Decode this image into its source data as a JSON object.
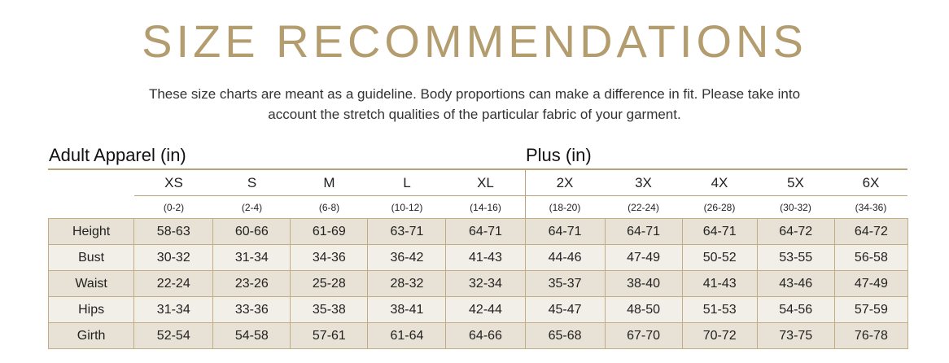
{
  "title": "SIZE RECOMMENDATIONS",
  "subtitle_line1": "These size charts are meant as a guideline. Body proportions can make a difference in fit. Please take into",
  "subtitle_line2": "account the stretch qualities of the particular fabric of your garment.",
  "sections": {
    "adult": "Adult Apparel (in)",
    "plus": "Plus (in)"
  },
  "sizes": [
    "XS",
    "S",
    "M",
    "L",
    "XL",
    "2X",
    "3X",
    "4X",
    "5X",
    "6X"
  ],
  "size_ranges": [
    "(0-2)",
    "(2-4)",
    "(6-8)",
    "(10-12)",
    "(14-16)",
    "(18-20)",
    "(22-24)",
    "(26-28)",
    "(30-32)",
    "(34-36)"
  ],
  "rows": [
    {
      "label": "Height",
      "values": [
        "58-63",
        "60-66",
        "61-69",
        "63-71",
        "64-71",
        "64-71",
        "64-71",
        "64-71",
        "64-72",
        "64-72"
      ]
    },
    {
      "label": "Bust",
      "values": [
        "30-32",
        "31-34",
        "34-36",
        "36-42",
        "41-43",
        "44-46",
        "47-49",
        "50-52",
        "53-55",
        "56-58"
      ]
    },
    {
      "label": "Waist",
      "values": [
        "22-24",
        "23-26",
        "25-28",
        "28-32",
        "32-34",
        "35-37",
        "38-40",
        "41-43",
        "43-46",
        "47-49"
      ]
    },
    {
      "label": "Hips",
      "values": [
        "31-34",
        "33-36",
        "35-38",
        "38-41",
        "42-44",
        "45-47",
        "48-50",
        "51-53",
        "54-56",
        "57-59"
      ]
    },
    {
      "label": "Girth",
      "values": [
        "52-54",
        "54-58",
        "57-61",
        "61-64",
        "64-66",
        "65-68",
        "67-70",
        "70-72",
        "73-75",
        "76-78"
      ]
    }
  ],
  "colors": {
    "accent": "#b39c6e",
    "row_dark": "#e8e1d5",
    "row_light": "#f2eee8",
    "border": "#c3ab82"
  }
}
